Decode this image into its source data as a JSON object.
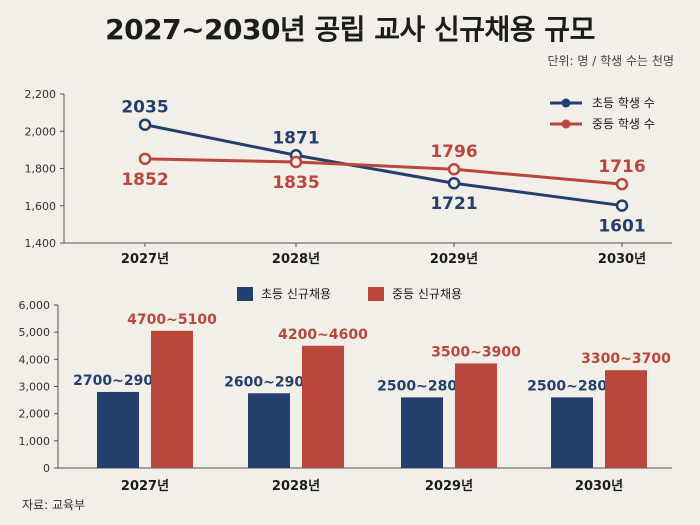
{
  "title": "2027~2030년 공립 교사 신규채용 규모",
  "unit_note": "단위: 명 / 학생 수는 천명",
  "source": "자료: 교육부",
  "colors": {
    "elementary": "#243f6e",
    "secondary": "#b9473b",
    "background": "#f2efe9"
  },
  "chart_data": [
    {
      "type": "line",
      "x": [
        "2027년",
        "2028년",
        "2029년",
        "2030년"
      ],
      "ylim": [
        1400,
        2200
      ],
      "yticks": [
        "1,400",
        "1,600",
        "1,800",
        "2,000",
        "2,200"
      ],
      "legend_position": "top-right",
      "series": [
        {
          "name": "초등 학생 수",
          "values": [
            2035,
            1871,
            1721,
            1601
          ],
          "labels": [
            "2035",
            "1871",
            "1721",
            "1601"
          ],
          "color": "#243f6e"
        },
        {
          "name": "중등 학생 수",
          "values": [
            1852,
            1835,
            1796,
            1716
          ],
          "labels": [
            "1852",
            "1835",
            "1796",
            "1716"
          ],
          "color": "#b9473b"
        }
      ]
    },
    {
      "type": "bar",
      "categories": [
        "2027년",
        "2028년",
        "2029년",
        "2030년"
      ],
      "ylim": [
        0,
        6000
      ],
      "yticks": [
        "0",
        "1,000",
        "2,000",
        "3,000",
        "4,000",
        "5,000",
        "6,000"
      ],
      "legend_position": "top-center",
      "series": [
        {
          "name": "초등 신규채용",
          "values": [
            2800,
            2750,
            2600,
            2600
          ],
          "labels": [
            "2700~2900",
            "2600~2900",
            "2500~2800",
            "2500~2800"
          ],
          "color": "#243f6e"
        },
        {
          "name": "중등 신규채용",
          "values": [
            5050,
            4500,
            3850,
            3600
          ],
          "labels": [
            "4700~5100",
            "4200~4600",
            "3500~3900",
            "3300~3700"
          ],
          "color": "#b9473b"
        }
      ]
    }
  ]
}
